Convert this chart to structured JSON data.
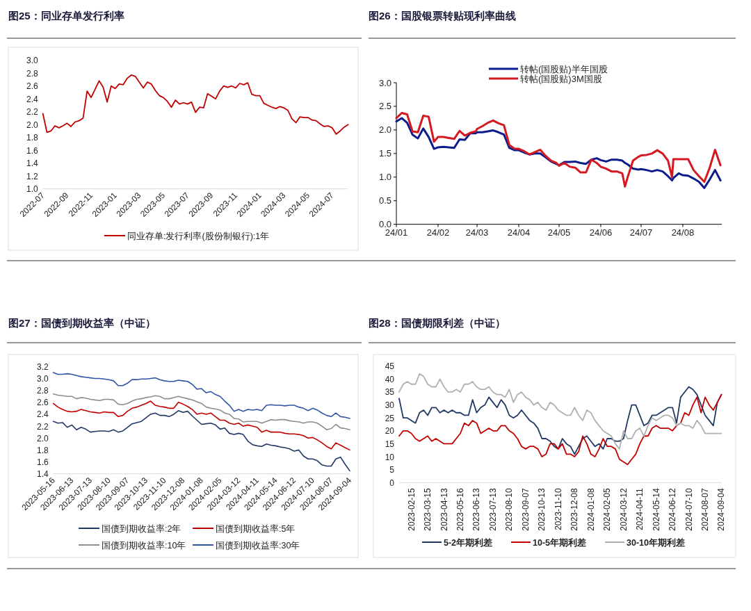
{
  "chart_data": [
    {
      "type": "line",
      "title": "图25：同业存单发行利率",
      "legend": "bottom",
      "categories": [
        "2022-07",
        null,
        null,
        null,
        null,
        null,
        "2022-09",
        null,
        null,
        null,
        null,
        null,
        "2022-11",
        null,
        null,
        null,
        null,
        null,
        "2023-01",
        null,
        null,
        null,
        null,
        null,
        "2023-03",
        null,
        null,
        null,
        null,
        null,
        "2023-05",
        null,
        null,
        null,
        null,
        null,
        "2023-07",
        null,
        null,
        null,
        null,
        null,
        "2023-09",
        null,
        null,
        null,
        null,
        null,
        "2023-11",
        null,
        null,
        null,
        null,
        null,
        "2024-01",
        null,
        null,
        null,
        null,
        null,
        "2024-03",
        null,
        null,
        null,
        null,
        null,
        "2024-05",
        null,
        null,
        null,
        null,
        null,
        "2024-07",
        null,
        null,
        null,
        null
      ],
      "ylim": [
        1.0,
        3.0
      ],
      "yticks": [
        {
          "value": 1.0,
          "label": "1.0"
        },
        1.2,
        1.4,
        1.6,
        1.8,
        {
          "value": 2.0,
          "label": "2.0"
        },
        2.2,
        2.4,
        2.6,
        2.8,
        {
          "value": 3.0,
          "label": "3.0"
        }
      ],
      "series": [
        {
          "name": "同业存单:发行利率(股份制银行):1年",
          "color": "#c00000",
          "values": [
            2.17,
            1.88,
            1.9,
            1.98,
            1.95,
            1.98,
            2.02,
            1.97,
            2.04,
            2.06,
            2.1,
            2.52,
            2.42,
            2.55,
            2.68,
            2.58,
            2.35,
            2.6,
            2.56,
            2.63,
            2.62,
            2.72,
            2.77,
            2.75,
            2.66,
            2.57,
            2.66,
            2.63,
            2.53,
            2.45,
            2.42,
            2.36,
            2.27,
            2.38,
            2.32,
            2.34,
            2.32,
            2.35,
            2.19,
            2.27,
            2.26,
            2.48,
            2.44,
            2.4,
            2.52,
            2.6,
            2.58,
            2.6,
            2.57,
            2.64,
            2.62,
            2.65,
            2.47,
            2.45,
            2.45,
            2.33,
            2.3,
            2.27,
            2.25,
            2.28,
            2.26,
            2.22,
            2.09,
            2.03,
            2.12,
            2.11,
            2.11,
            2.07,
            2.06,
            2.01,
            1.97,
            1.98,
            1.95,
            1.85,
            1.9,
            1.96,
            2.0
          ]
        }
      ]
    },
    {
      "type": "line",
      "title": "图26：国股银票转贴现利率曲线",
      "legend": "top",
      "x": [
        "2024-01-01",
        "2024-01-05",
        "2024-01-09",
        "2024-01-13",
        "2024-01-17",
        "2024-01-21",
        "2024-01-25",
        "2024-01-29",
        "2024-02-01",
        "2024-02-05",
        "2024-02-09",
        "2024-02-13",
        "2024-02-17",
        "2024-02-21",
        "2024-02-25",
        "2024-02-29",
        "2024-03-01",
        "2024-03-05",
        "2024-03-09",
        "2024-03-13",
        "2024-03-17",
        "2024-03-21",
        "2024-03-25",
        "2024-03-29",
        "2024-04-01",
        "2024-04-05",
        "2024-04-09",
        "2024-04-13",
        "2024-04-17",
        "2024-04-21",
        "2024-04-25",
        "2024-04-29",
        "2024-05-01",
        "2024-05-05",
        "2024-05-09",
        "2024-05-13",
        "2024-05-17",
        "2024-05-21",
        "2024-05-25",
        "2024-05-29",
        "2024-06-01",
        "2024-06-05",
        "2024-06-09",
        "2024-06-13",
        "2024-06-17",
        "2024-06-19",
        "2024-06-21",
        "2024-06-25",
        "2024-06-29",
        "2024-07-01",
        "2024-07-05",
        "2024-07-09",
        "2024-07-13",
        "2024-07-17",
        "2024-07-21",
        "2024-07-24",
        "2024-07-25",
        "2024-07-29",
        "2024-08-01",
        "2024-08-05",
        "2024-08-09",
        "2024-08-13",
        "2024-08-17",
        "2024-08-21",
        "2024-08-25",
        "2024-08-29"
      ],
      "xlim": [
        "2024-01-01",
        "2024-08-30"
      ],
      "xticks": [
        {
          "value": "2024-01",
          "label": "24/01"
        },
        {
          "value": "2024-02",
          "label": "24/02"
        },
        {
          "value": "2024-03",
          "label": "24/03"
        },
        {
          "value": "2024-04",
          "label": "24/04"
        },
        {
          "value": "2024-05",
          "label": "24/05"
        },
        {
          "value": "2024-06",
          "label": "24/06"
        },
        {
          "value": "2024-07",
          "label": "24/07"
        },
        {
          "value": "2024-08",
          "label": "24/08"
        }
      ],
      "ylim": [
        0.0,
        3.0
      ],
      "yticks": [
        {
          "value": 0.0,
          "label": "0.0"
        },
        0.5,
        {
          "value": 1.0,
          "label": "1.0"
        },
        1.5,
        {
          "value": 2.0,
          "label": "2.0"
        },
        2.5,
        {
          "value": 3.0,
          "label": "3.0"
        }
      ],
      "series": [
        {
          "name": "转帖(国股贴)半年国股",
          "color": "#0c1c8c",
          "values": [
            2.18,
            2.25,
            2.15,
            1.9,
            1.82,
            2.03,
            1.85,
            1.6,
            1.63,
            1.64,
            1.63,
            1.62,
            1.8,
            1.79,
            1.93,
            1.93,
            1.95,
            1.95,
            1.97,
            1.99,
            1.95,
            1.9,
            1.62,
            1.57,
            1.57,
            1.52,
            1.48,
            1.5,
            1.5,
            1.42,
            1.33,
            1.28,
            1.25,
            1.32,
            1.32,
            1.33,
            1.3,
            1.28,
            1.37,
            1.4,
            1.36,
            1.33,
            1.37,
            1.37,
            1.35,
            1.3,
            1.27,
            1.18,
            1.16,
            1.17,
            1.15,
            1.12,
            1.15,
            1.12,
            1.02,
            0.93,
            0.98,
            1.08,
            1.04,
            1.03,
            0.97,
            0.9,
            0.77,
            0.95,
            1.15,
            0.93
          ]
        },
        {
          "name": "转帖(国股贴)3M国股",
          "color": "#d41920",
          "values": [
            2.25,
            2.36,
            2.33,
            1.97,
            1.95,
            2.3,
            2.28,
            1.75,
            1.85,
            1.85,
            1.83,
            1.81,
            1.98,
            1.88,
            1.94,
            1.97,
            2.02,
            2.08,
            2.15,
            2.2,
            2.14,
            2.1,
            1.68,
            1.6,
            1.6,
            1.55,
            1.48,
            1.53,
            1.58,
            1.45,
            1.35,
            1.3,
            1.24,
            1.3,
            1.22,
            1.2,
            1.1,
            1.1,
            1.37,
            1.3,
            1.22,
            1.18,
            1.12,
            1.12,
            1.08,
            0.8,
            1.0,
            1.35,
            1.43,
            1.46,
            1.47,
            1.5,
            1.57,
            1.5,
            1.35,
            1.0,
            1.38,
            1.38,
            1.38,
            1.38,
            1.15,
            1.02,
            0.9,
            1.2,
            1.58,
            1.25
          ]
        }
      ]
    },
    {
      "type": "line",
      "title": "图27：国债到期收益率（中证）",
      "legend": "bottom",
      "categories": [
        "2023-05-16",
        null,
        null,
        null,
        "2023-06-13",
        null,
        null,
        null,
        "2023-07-13",
        null,
        null,
        null,
        "2023-08-10",
        null,
        null,
        null,
        "2023-09-07",
        null,
        null,
        null,
        "2023-10-13",
        null,
        null,
        null,
        "2023-11-10",
        null,
        null,
        null,
        "2023-12-08",
        null,
        null,
        null,
        "2024-01-08",
        null,
        null,
        null,
        "2024-02-05",
        null,
        null,
        null,
        "2024-03-12",
        null,
        null,
        null,
        "2024-04-11",
        null,
        null,
        null,
        "2024-05-14",
        null,
        null,
        null,
        "2024-06-12",
        null,
        null,
        null,
        "2024-07-10",
        null,
        null,
        null,
        "2024-08-07",
        null,
        null,
        null,
        "2024-09-04"
      ],
      "ylim": [
        1.4,
        3.2
      ],
      "yticks": [
        1.4,
        1.6,
        1.8,
        {
          "value": 2.0,
          "label": "2.0"
        },
        2.2,
        2.4,
        2.6,
        2.8,
        {
          "value": 3.0,
          "label": "3.0"
        },
        3.2
      ],
      "series": [
        {
          "name": "国债到期收益率:2年",
          "color": "#203864",
          "values": [
            2.28,
            2.25,
            2.26,
            2.18,
            2.22,
            2.14,
            2.18,
            2.15,
            2.1,
            2.11,
            2.12,
            2.12,
            2.11,
            2.14,
            2.1,
            2.12,
            2.18,
            2.24,
            2.26,
            2.28,
            2.34,
            2.4,
            2.42,
            2.38,
            2.38,
            2.36,
            2.4,
            2.46,
            2.43,
            2.45,
            2.37,
            2.3,
            2.23,
            2.24,
            2.25,
            2.22,
            2.15,
            2.17,
            2.08,
            2.06,
            2.08,
            2.06,
            1.95,
            1.89,
            1.87,
            1.86,
            1.9,
            1.88,
            1.87,
            1.85,
            1.84,
            1.82,
            1.78,
            1.8,
            1.7,
            1.65,
            1.65,
            1.62,
            1.55,
            1.53,
            1.53,
            1.65,
            1.68,
            1.56,
            1.45
          ]
        },
        {
          "name": "国债到期收益率:5年",
          "color": "#c00000",
          "values": [
            2.58,
            2.52,
            2.48,
            2.45,
            2.44,
            2.45,
            2.48,
            2.46,
            2.44,
            2.43,
            2.42,
            2.44,
            2.43,
            2.43,
            2.36,
            2.38,
            2.45,
            2.5,
            2.52,
            2.55,
            2.58,
            2.62,
            2.55,
            2.53,
            2.52,
            2.5,
            2.5,
            2.6,
            2.57,
            2.53,
            2.48,
            2.4,
            2.42,
            2.4,
            2.42,
            2.36,
            2.3,
            2.3,
            2.25,
            2.23,
            2.25,
            2.2,
            2.22,
            2.2,
            2.18,
            2.1,
            2.13,
            2.1,
            2.1,
            2.1,
            2.08,
            2.07,
            2.07,
            2.06,
            2.04,
            2.0,
            2.01,
            1.97,
            1.92,
            1.86,
            1.82,
            1.92,
            1.88,
            1.84,
            1.8
          ]
        },
        {
          "name": "国债到期收益率:10年",
          "color": "#8c8c8c",
          "values": [
            2.74,
            2.72,
            2.71,
            2.7,
            2.7,
            2.66,
            2.68,
            2.67,
            2.65,
            2.64,
            2.63,
            2.65,
            2.65,
            2.64,
            2.57,
            2.56,
            2.58,
            2.62,
            2.65,
            2.66,
            2.68,
            2.69,
            2.71,
            2.7,
            2.66,
            2.66,
            2.68,
            2.7,
            2.68,
            2.66,
            2.64,
            2.61,
            2.58,
            2.52,
            2.5,
            2.49,
            2.47,
            2.42,
            2.4,
            2.33,
            2.32,
            2.27,
            2.28,
            2.28,
            2.28,
            2.25,
            2.28,
            2.31,
            2.3,
            2.31,
            2.31,
            2.29,
            2.28,
            2.27,
            2.25,
            2.27,
            2.27,
            2.25,
            2.2,
            2.14,
            2.16,
            2.23,
            2.17,
            2.16,
            2.14
          ]
        },
        {
          "name": "国债到期收益率:30年",
          "color": "#2f55a4",
          "values": [
            3.1,
            3.07,
            3.07,
            3.08,
            3.07,
            3.05,
            3.03,
            3.02,
            3.01,
            3.0,
            3.0,
            2.99,
            2.98,
            2.96,
            2.88,
            2.88,
            2.92,
            2.98,
            2.98,
            2.99,
            2.99,
            3.0,
            3.01,
            2.98,
            2.96,
            2.95,
            2.95,
            2.97,
            2.96,
            2.95,
            2.9,
            2.82,
            2.83,
            2.76,
            2.78,
            2.73,
            2.7,
            2.62,
            2.55,
            2.45,
            2.48,
            2.45,
            2.48,
            2.47,
            2.48,
            2.46,
            2.55,
            2.56,
            2.55,
            2.55,
            2.54,
            2.55,
            2.55,
            2.52,
            2.5,
            2.46,
            2.5,
            2.47,
            2.42,
            2.38,
            2.36,
            2.42,
            2.36,
            2.35,
            2.33
          ]
        }
      ]
    },
    {
      "type": "line",
      "title": "图28：国债期限利差（中证）",
      "legend": "bottom",
      "categories": [
        null,
        null,
        null,
        "2023-02-15",
        null,
        null,
        null,
        "2023-03-15",
        null,
        null,
        null,
        "2023-04-13",
        null,
        null,
        null,
        "2023-05-16",
        null,
        null,
        null,
        "2023-06-13",
        null,
        null,
        null,
        "2023-07-13",
        null,
        null,
        null,
        "2023-08-10",
        null,
        null,
        null,
        "2023-09-07",
        null,
        null,
        null,
        "2023-10-13",
        null,
        null,
        null,
        "2023-11-10",
        null,
        null,
        null,
        "2023-12-08",
        null,
        null,
        null,
        "2024-01-08",
        null,
        null,
        null,
        "2024-02-05",
        null,
        null,
        null,
        "2024-03-12",
        null,
        null,
        null,
        "2024-04-11",
        null,
        null,
        null,
        "2024-05-14",
        null,
        null,
        null,
        "2024-06-12",
        null,
        null,
        null,
        "2024-07-10",
        null,
        null,
        null,
        "2024-08-07",
        null,
        null,
        null,
        "2024-09-04"
      ],
      "ylim": [
        0,
        45
      ],
      "yticks": [
        0,
        5,
        10,
        15,
        20,
        25,
        30,
        35,
        40,
        45
      ],
      "series": [
        {
          "name": "5-2年期利差",
          "color": "#203864",
          "values": [
            32.5,
            25,
            25,
            24,
            23,
            27,
            28,
            26,
            29,
            29,
            27,
            28,
            27,
            28,
            27,
            27,
            26,
            26,
            32,
            27,
            29,
            30,
            33,
            31,
            29,
            32,
            30,
            26,
            25,
            26,
            28,
            26,
            24,
            23,
            21,
            17,
            17,
            16,
            14,
            13,
            17,
            15,
            14,
            11,
            14,
            17,
            18,
            16,
            14,
            15,
            13,
            17,
            17,
            16,
            16,
            17,
            24,
            30,
            30,
            26,
            22,
            23,
            26,
            26,
            27,
            28,
            29,
            29,
            23,
            33,
            35,
            37,
            36,
            34,
            30,
            26,
            24,
            22,
            31,
            34
          ]
        },
        {
          "name": "10-5年期利差",
          "color": "#c00000",
          "values": [
            18,
            20,
            20,
            19,
            17,
            16,
            17,
            18,
            16,
            17,
            16,
            15,
            15,
            15,
            17,
            19,
            23,
            22,
            24,
            23,
            19,
            20,
            21,
            20,
            20,
            22,
            22,
            20,
            19,
            17,
            14,
            13,
            14,
            14,
            13,
            10,
            11,
            15,
            15,
            13,
            15,
            11,
            11,
            10,
            12,
            18,
            15,
            11,
            10,
            13,
            17,
            14,
            14,
            13,
            9,
            8,
            7,
            9,
            11,
            15,
            18,
            18,
            21,
            22,
            21,
            21,
            21,
            20,
            22,
            23,
            27,
            26,
            30,
            33,
            27,
            33,
            30,
            28,
            31,
            34
          ]
        },
        {
          "name": "30-10年期利差",
          "color": "#b0b0b0",
          "values": [
            35,
            38,
            39,
            38,
            38,
            42,
            41,
            38,
            37,
            37,
            40,
            37,
            35,
            35,
            36,
            35,
            38,
            38,
            39,
            37,
            36,
            36,
            37,
            35,
            34,
            34,
            33,
            36,
            31,
            34,
            35,
            33,
            32,
            30,
            31,
            29,
            28,
            31,
            30,
            28,
            27,
            26,
            26,
            29,
            26,
            24,
            28,
            27,
            24,
            22,
            20,
            19,
            18,
            15,
            13,
            20,
            17,
            17,
            20,
            21,
            18,
            22,
            25,
            24,
            25,
            26,
            26,
            25,
            22,
            23,
            22,
            22,
            21,
            24,
            22,
            19,
            19,
            19,
            19,
            19
          ]
        }
      ]
    }
  ]
}
